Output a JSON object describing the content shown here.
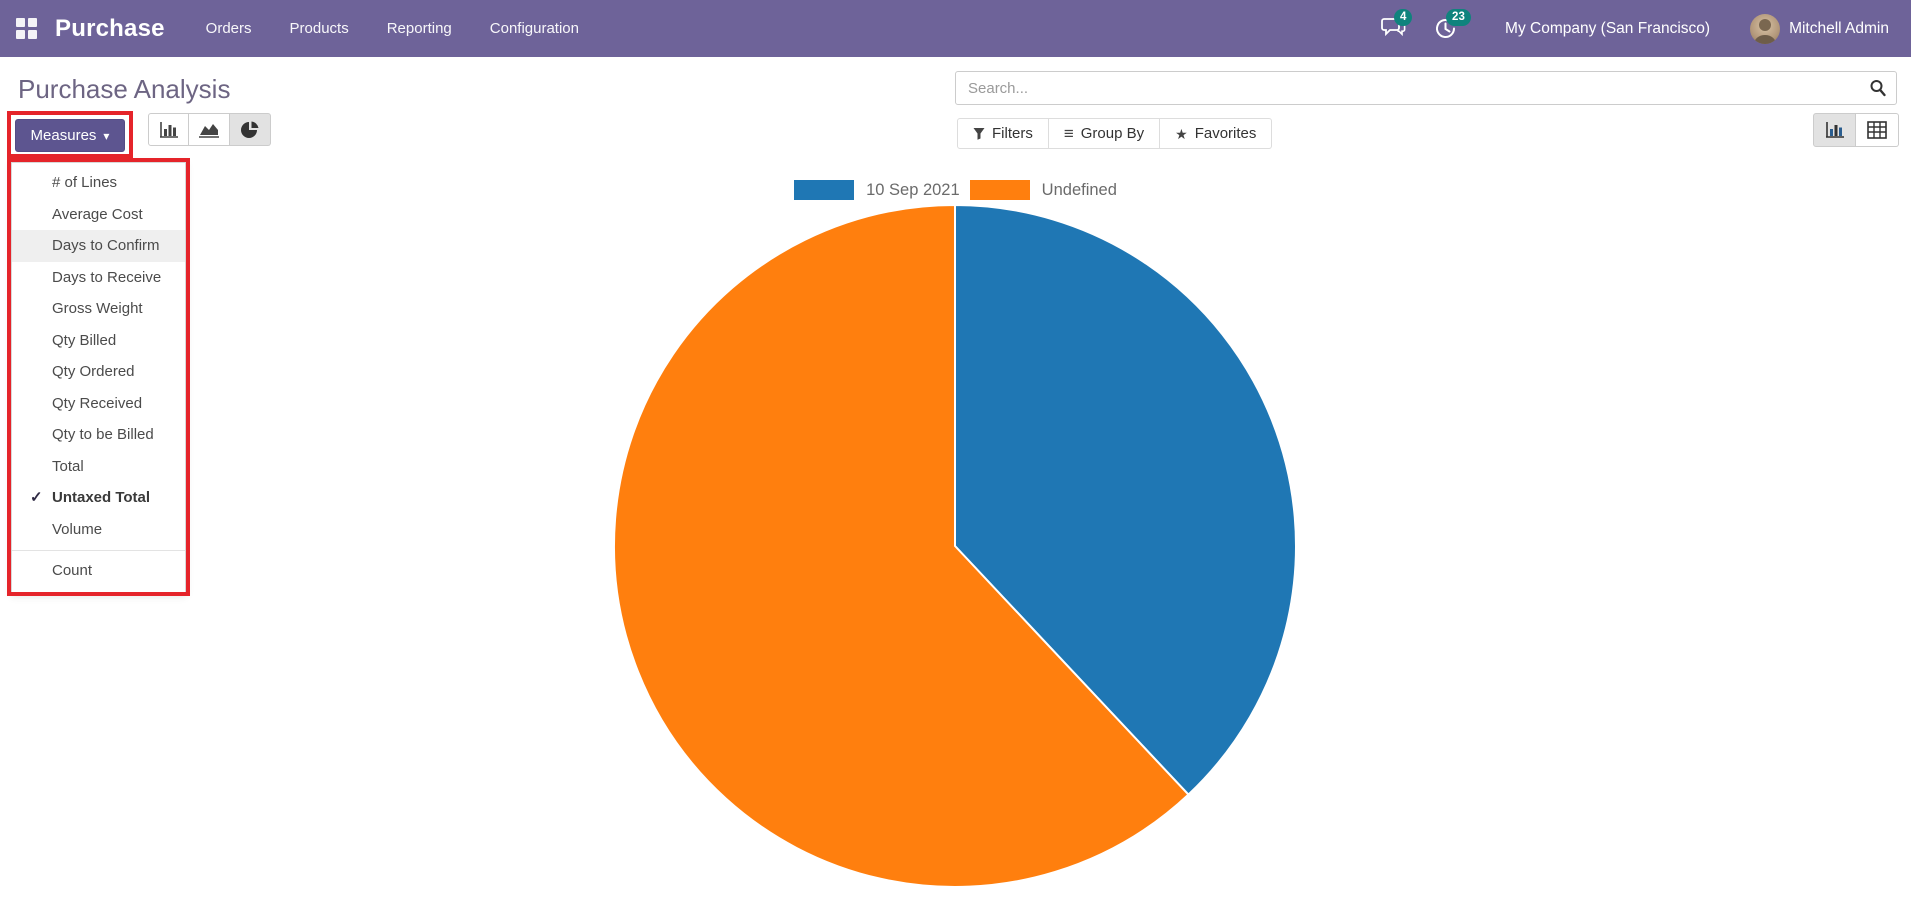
{
  "navbar": {
    "app_name": "Purchase",
    "menus": [
      "Orders",
      "Products",
      "Reporting",
      "Configuration"
    ],
    "messages_badge": "4",
    "activities_badge": "23",
    "company": "My Company (San Francisco)",
    "user": "Mitchell Admin",
    "bar_color": "#6e6399",
    "badge_color": "#0f837d"
  },
  "header": {
    "title": "Purchase Analysis",
    "search_placeholder": "Search..."
  },
  "toolbar": {
    "measures_label": "Measures",
    "filters_label": "Filters",
    "group_by_label": "Group By",
    "favorites_label": "Favorites"
  },
  "icons": {
    "caret_down": "▾",
    "check": "✓",
    "list": "≡",
    "star": "★"
  },
  "measures_menu": {
    "items": [
      {
        "label": "# of Lines",
        "checked": false,
        "highlighted": false
      },
      {
        "label": "Average Cost",
        "checked": false,
        "highlighted": false
      },
      {
        "label": "Days to Confirm",
        "checked": false,
        "highlighted": true
      },
      {
        "label": "Days to Receive",
        "checked": false,
        "highlighted": false
      },
      {
        "label": "Gross Weight",
        "checked": false,
        "highlighted": false
      },
      {
        "label": "Qty Billed",
        "checked": false,
        "highlighted": false
      },
      {
        "label": "Qty Ordered",
        "checked": false,
        "highlighted": false
      },
      {
        "label": "Qty Received",
        "checked": false,
        "highlighted": false
      },
      {
        "label": "Qty to be Billed",
        "checked": false,
        "highlighted": false
      },
      {
        "label": "Total",
        "checked": false,
        "highlighted": false
      },
      {
        "label": "Untaxed Total",
        "checked": true,
        "highlighted": false
      },
      {
        "label": "Volume",
        "checked": false,
        "highlighted": false
      }
    ],
    "footer_item": "Count"
  },
  "annotation": {
    "highlight_color": "#e5242a"
  },
  "chart_data": {
    "type": "pie",
    "title": "",
    "legend_position": "top",
    "start_angle": "12-o'clock, clockwise",
    "values_are_percent_estimates": true,
    "series": [
      {
        "label": "10 Sep 2021",
        "value": 38,
        "color": "#1f77b4"
      },
      {
        "label": "Undefined",
        "value": 62,
        "color": "#ff7f0e"
      }
    ]
  }
}
